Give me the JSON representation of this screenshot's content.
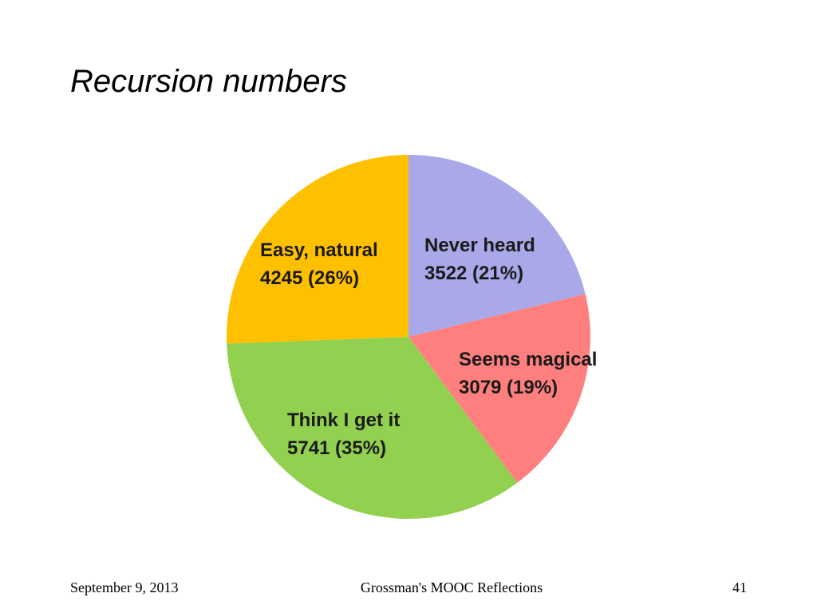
{
  "chart_data": {
    "type": "pie",
    "title": "Recursion numbers",
    "categories": [
      "Never heard",
      "Seems magical",
      "Think I get it",
      "Easy, natural"
    ],
    "values": [
      3522,
      3079,
      5741,
      4245
    ],
    "value_labels": [
      "3522 (21%)",
      "3079 (19%)",
      "5741 (35%)",
      "4245 (26%)"
    ],
    "colors": [
      "#a9a8e8",
      "#ff7f7f",
      "#92d050",
      "#ffc000"
    ]
  },
  "footer": {
    "date": "September 9, 2013",
    "center": "Grossman's MOOC Reflections",
    "page": 41
  }
}
